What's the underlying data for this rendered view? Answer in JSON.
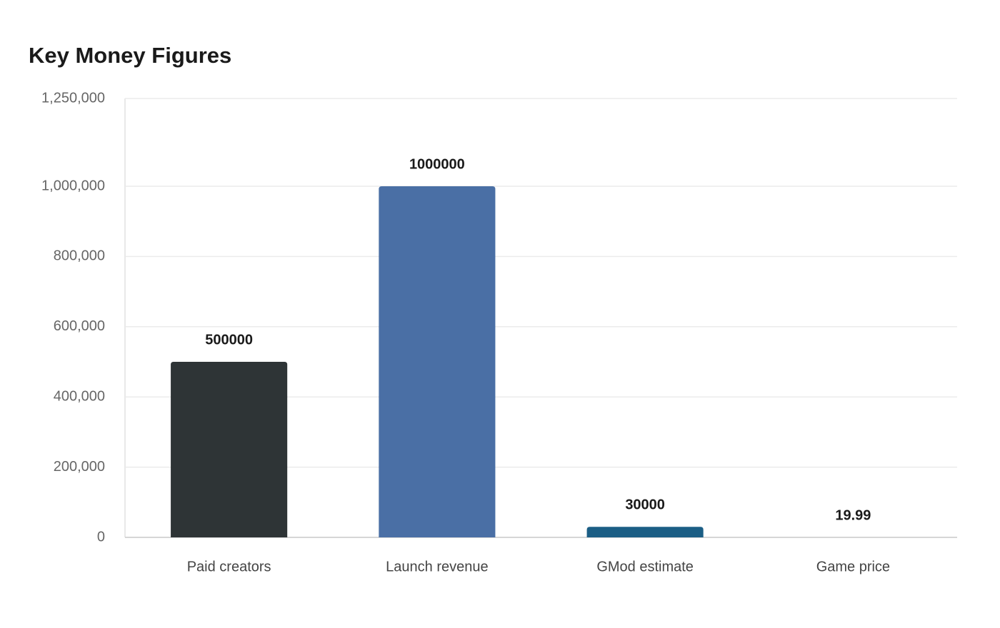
{
  "chart_data": {
    "type": "bar",
    "title": "Key Money Figures",
    "categories": [
      "Paid creators",
      "Launch revenue",
      "GMod estimate",
      "Game price"
    ],
    "values": [
      500000,
      1000000,
      30000,
      19.99
    ],
    "colors": [
      "#2e3436",
      "#4a6fa5",
      "#1b5e85",
      "#9e9e9e"
    ],
    "ylim": [
      0,
      1250000
    ],
    "yticks": [
      0,
      {
        "value": 200000,
        "label": "200,000"
      },
      {
        "value": 400000,
        "label": "400,000"
      },
      {
        "value": 600000,
        "label": "600,000"
      },
      {
        "value": 800000,
        "label": "800,000"
      },
      {
        "value": 1000000,
        "label": "1,000,000"
      },
      {
        "value": 1250000,
        "label": "1,250,000"
      }
    ],
    "grid": true
  }
}
